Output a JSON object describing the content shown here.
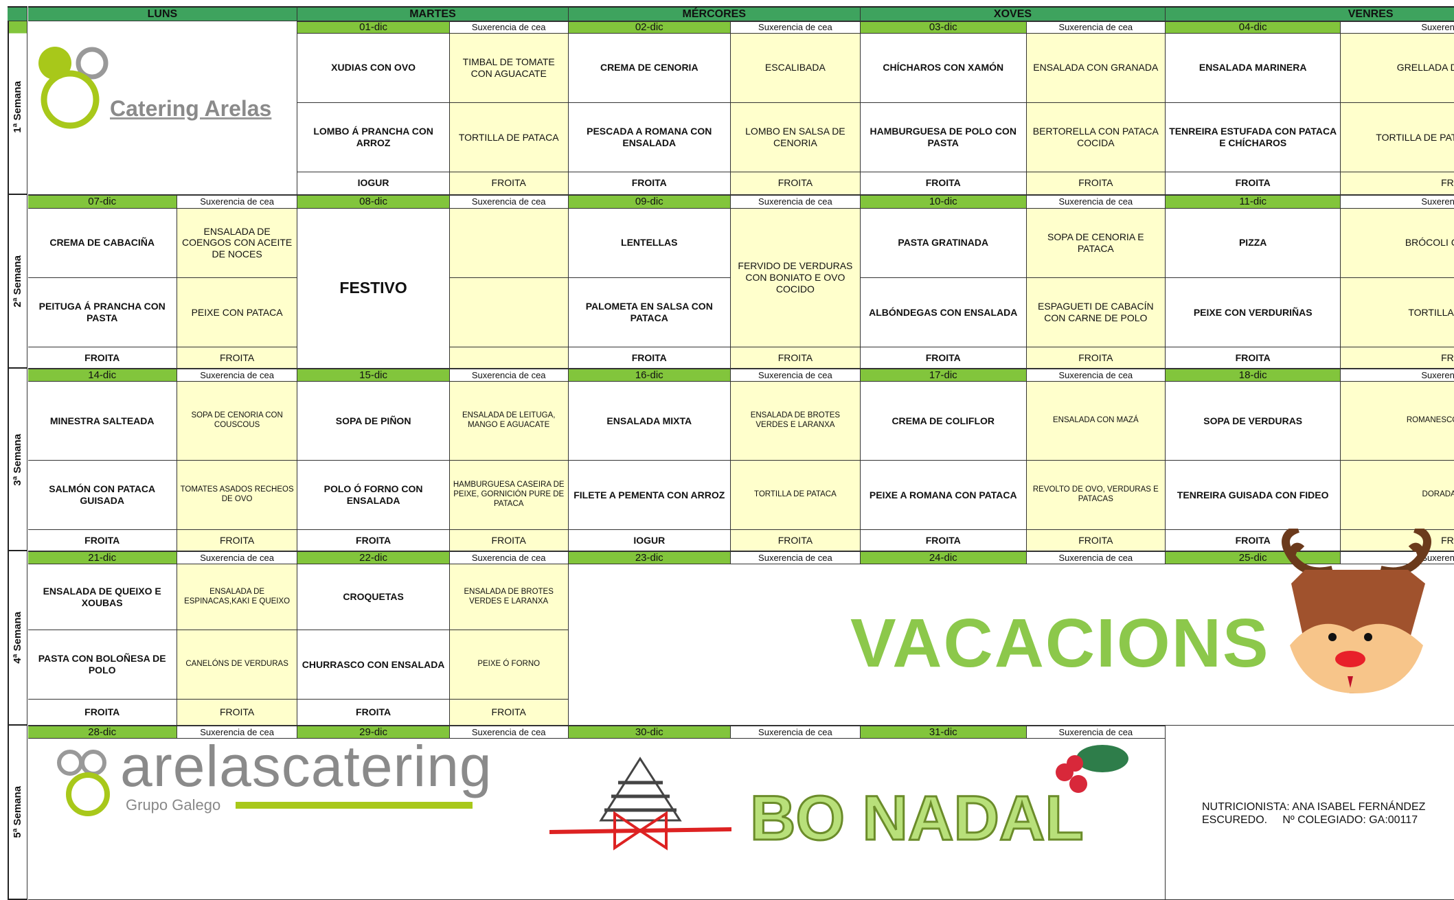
{
  "header": {
    "days": [
      "LUNS",
      "MARTES",
      "MÉRCORES",
      "XOVES",
      "VENRES"
    ]
  },
  "weeks": [
    {
      "label": "1ª Semana",
      "dates": [
        {
          "date": "01-dic",
          "note": "Suxerencia de cea"
        },
        {
          "date": "02-dic",
          "note": "Suxerencia de cea"
        },
        {
          "date": "03-dic",
          "note": "Suxerencia de cea"
        },
        {
          "date": "04-dic",
          "note": "Suxerencia de cea"
        }
      ],
      "menus": [
        {
          "lunch": [
            "XUDIAS CON OVO",
            "LOMBO Á PRANCHA CON ARROZ",
            "IOGUR"
          ],
          "dinner": [
            "TIMBAL DE TOMATE CON AGUACATE",
            "TORTILLA DE PATACA",
            "FROITA"
          ]
        },
        {
          "lunch": [
            "CREMA DE CENORIA",
            "PESCADA A ROMANA CON ENSALADA",
            "FROITA"
          ],
          "dinner": [
            "ESCALIBADA",
            "LOMBO EN SALSA DE CENORIA",
            "FROITA"
          ]
        },
        {
          "lunch": [
            "CHÍCHAROS CON XAMÓN",
            "HAMBURGUESA DE POLO CON PASTA",
            "FROITA"
          ],
          "dinner": [
            "ENSALADA CON GRANADA",
            "BERTORELLA CON PATACA COCIDA",
            "FROITA"
          ]
        },
        {
          "lunch": [
            "ENSALADA MARINERA",
            "TENREIRA ESTUFADA CON PATACA E CHÍCHAROS",
            "FROITA"
          ],
          "dinner": [
            "GRELLADA DE VERDURAS",
            "TORTILLA DE PATACA E VERDURAS",
            "FROITA"
          ]
        }
      ]
    },
    {
      "label": "2ª Semana",
      "dates": [
        {
          "date": "07-dic",
          "note": "Suxerencia de cea"
        },
        {
          "date": "08-dic",
          "note": "Suxerencia de cea"
        },
        {
          "date": "09-dic",
          "note": "Suxerencia de cea"
        },
        {
          "date": "10-dic",
          "note": "Suxerencia de cea"
        },
        {
          "date": "11-dic",
          "note": "Suxerencia de cea"
        }
      ],
      "menus": [
        {
          "lunch": [
            "CREMA DE CABACIÑA",
            "PEITUGA Á PRANCHA CON PASTA",
            "FROITA"
          ],
          "dinner": [
            "ENSALADA DE COENGOS CON  ACEITE DE NOCES",
            "PEIXE CON PATACA",
            "FROITA"
          ]
        },
        {
          "lunch": [
            "FESTIVO"
          ],
          "dinner": []
        },
        {
          "lunch": [
            "LENTELLAS",
            "PALOMETA EN SALSA CON PATACA",
            "FROITA"
          ],
          "dinner": [
            "FERVIDO DE VERDURAS CON BONIATO E OVO COCIDO",
            "FROITA"
          ]
        },
        {
          "lunch": [
            "PASTA GRATINADA",
            "ALBÓNDEGAS CON ENSALADA",
            "FROITA"
          ],
          "dinner": [
            "SOPA DE CENORIA E PATACA",
            "ESPAGUETI DE CABACÍN CON CARNE DE POLO",
            "FROITA"
          ]
        },
        {
          "lunch": [
            "PIZZA",
            "PEIXE CON VERDURIÑAS",
            "FROITA"
          ],
          "dinner": [
            "BRÓCOLI CON PATACA",
            "TORTILLA FRANCESA",
            "FROITA"
          ]
        }
      ]
    },
    {
      "label": "3ª Semana",
      "dates": [
        {
          "date": "14-dic",
          "note": "Suxerencia de cea"
        },
        {
          "date": "15-dic",
          "note": "Suxerencia de cea"
        },
        {
          "date": "16-dic",
          "note": "Suxerencia de cea"
        },
        {
          "date": "17-dic",
          "note": "Suxerencia de cea"
        },
        {
          "date": "18-dic",
          "note": "Suxerencia de cea"
        }
      ],
      "menus": [
        {
          "lunch": [
            "MINESTRA SALTEADA",
            "SALMÓN CON PATACA GUISADA",
            "FROITA"
          ],
          "dinner": [
            "SOPA DE CENORIA CON COUSCOUS",
            "TOMATES ASADOS RECHEOS DE OVO",
            "FROITA"
          ]
        },
        {
          "lunch": [
            "SOPA DE PIÑON",
            "POLO Ó FORNO CON ENSALADA",
            "FROITA"
          ],
          "dinner": [
            "ENSALADA DE LEITUGA, MANGO E AGUACATE",
            "HAMBURGUESA CASEIRA DE PEIXE, GORNICIÓN PURE DE PATACA",
            "FROITA"
          ]
        },
        {
          "lunch": [
            "ENSALADA MIXTA",
            "FILETE A PEMENTA CON ARROZ",
            "IOGUR"
          ],
          "dinner": [
            "ENSALADA DE BROTES VERDES E LARANXA",
            "TORTILLA DE PATACA",
            "FROITA"
          ]
        },
        {
          "lunch": [
            "CREMA DE COLIFLOR",
            "PEIXE A ROMANA CON PATACA",
            "FROITA"
          ],
          "dinner": [
            "ENSALADA CON MAZÁ",
            "REVOLTO DE OVO, VERDURAS E PATACAS",
            "FROITA"
          ]
        },
        {
          "lunch": [
            "SOPA DE VERDURAS",
            "TENREIRA GUISADA CON FIDEO",
            "FROITA"
          ],
          "dinner": [
            "ROMANESCO CON PATACA",
            "DORADA Ó FORNO",
            "FROITA"
          ]
        }
      ]
    },
    {
      "label": "4ª Semana",
      "dates": [
        {
          "date": "21-dic",
          "note": "Suxerencia de cea"
        },
        {
          "date": "22-dic",
          "note": "Suxerencia de cea"
        },
        {
          "date": "23-dic",
          "note": "Suxerencia de cea"
        },
        {
          "date": "24-dic",
          "note": "Suxerencia de cea"
        },
        {
          "date": "25-dic",
          "note": "Suxerencia de cea"
        }
      ],
      "menus": [
        {
          "lunch": [
            "ENSALADA DE QUEIXO E XOUBAS",
            "PASTA CON BOLOÑESA DE POLO",
            "FROITA"
          ],
          "dinner": [
            "ENSALADA DE ESPINACAS,KAKI E QUEIXO",
            "CANELÓNS DE VERDURAS",
            "FROITA"
          ]
        },
        {
          "lunch": [
            "CROQUETAS",
            "CHURRASCO CON ENSALADA",
            "FROITA"
          ],
          "dinner": [
            "ENSALADA DE BROTES VERDES E LARANXA",
            "PEIXE Ó FORNO",
            "FROITA"
          ]
        }
      ]
    },
    {
      "label": "5ª Semana",
      "dates": [
        {
          "date": "28-dic",
          "note": "Suxerencia de cea"
        },
        {
          "date": "29-dic",
          "note": "Suxerencia de cea"
        },
        {
          "date": "30-dic",
          "note": "Suxerencia de cea"
        },
        {
          "date": "31-dic",
          "note": "Suxerencia de cea"
        }
      ],
      "menus": []
    }
  ],
  "logo_top": "Catering Arelas",
  "vacation_banner": "VACACIONS",
  "footer": {
    "logo_name": "arelascatering",
    "logo_sub": "Grupo Galego",
    "greeting": "BO NADAL",
    "nutritionist": [
      "NUTRICIONISTA: ANA ISABEL FERNÁNDEZ",
      "ESCUREDO.     Nº COLEGIADO: GA:00117"
    ]
  }
}
